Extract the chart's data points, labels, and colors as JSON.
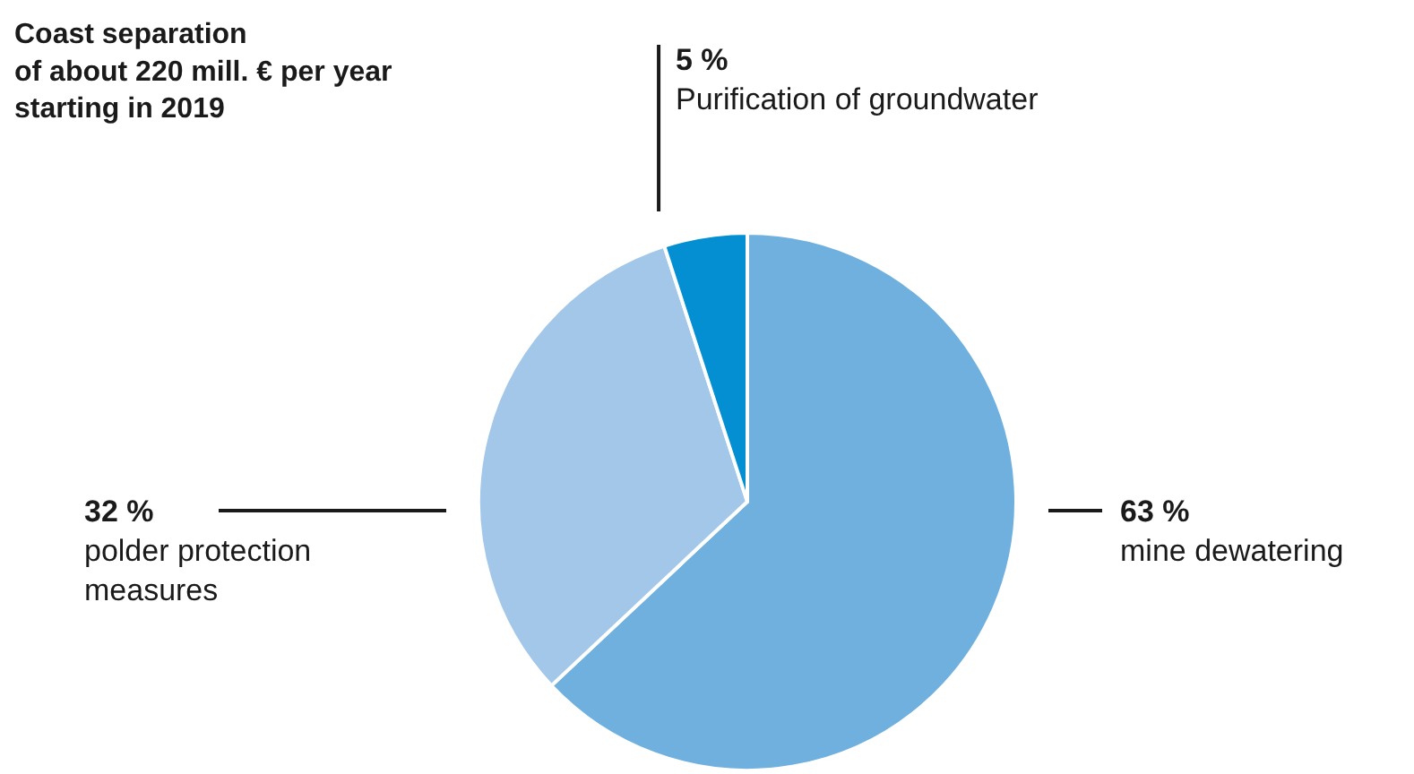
{
  "chart_data": {
    "type": "pie",
    "title": "Coast separation\nof about 220 mill. € per year\nstarting in 2019",
    "categories": [
      "mine dewatering",
      "polder protection measures",
      "Purification of groundwater"
    ],
    "values": [
      63,
      32,
      5
    ],
    "colors": [
      "#6fb0df",
      "#a2c7e9",
      "#038fd1"
    ],
    "value_labels": [
      "63 %",
      "32 %",
      "5 %"
    ],
    "legend": false
  }
}
